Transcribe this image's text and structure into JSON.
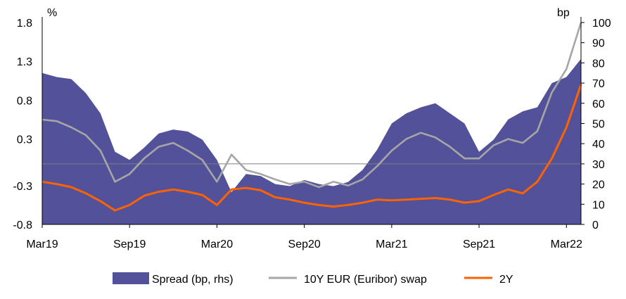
{
  "chart_data": {
    "type": "line",
    "title": "",
    "xlabel": "",
    "ylabel_left": "%",
    "ylabel_right": "bp",
    "x_ticks": [
      "Mar19",
      "Sep19",
      "Mar20",
      "Sep20",
      "Mar21",
      "Sep21",
      "Mar22"
    ],
    "x_range": [
      "Mar19",
      "Apr22"
    ],
    "ylim_left": [
      -0.8,
      1.8
    ],
    "ylim_right": [
      0,
      100
    ],
    "y_ticks_left": [
      "1.8",
      "1.3",
      "0.8",
      "0.3",
      "-0.3",
      "-0.8"
    ],
    "y_ticks_right": [
      "100",
      "90",
      "80",
      "70",
      "60",
      "50",
      "40",
      "30",
      "20",
      "10",
      "0"
    ],
    "grid": false,
    "reference_line_right": 30,
    "legend_position": "bottom",
    "x": [
      "Mar19",
      "Apr19",
      "May19",
      "Jun19",
      "Jul19",
      "Aug19",
      "Sep19",
      "Oct19",
      "Nov19",
      "Dec19",
      "Jan20",
      "Feb20",
      "Mar20",
      "Apr20",
      "May20",
      "Jun20",
      "Jul20",
      "Aug20",
      "Sep20",
      "Oct20",
      "Nov20",
      "Dec20",
      "Jan21",
      "Feb21",
      "Mar21",
      "Apr21",
      "May21",
      "Jun21",
      "Jul21",
      "Aug21",
      "Sep21",
      "Oct21",
      "Nov21",
      "Dec21",
      "Jan22",
      "Feb22",
      "Mar22",
      "Apr22"
    ],
    "series": [
      {
        "name": "Spread (bp, rhs)",
        "type": "area",
        "axis": "right",
        "color": "#525199",
        "values": [
          75,
          73,
          72,
          65,
          55,
          36,
          32,
          38,
          45,
          47,
          46,
          42,
          32,
          16,
          25,
          24,
          20,
          19,
          22,
          20,
          19,
          21,
          27,
          37,
          50,
          55,
          58,
          60,
          55,
          50,
          36,
          42,
          52,
          56,
          58,
          70,
          73,
          82
        ]
      },
      {
        "name": "10Y EUR (Euribor) swap",
        "type": "line",
        "axis": "left",
        "color": "#a6a6a6",
        "values": [
          0.55,
          0.53,
          0.45,
          0.35,
          0.15,
          -0.25,
          -0.15,
          0.05,
          0.2,
          0.25,
          0.15,
          0.03,
          -0.25,
          0.1,
          -0.1,
          -0.15,
          -0.22,
          -0.28,
          -0.25,
          -0.32,
          -0.25,
          -0.3,
          -0.22,
          -0.05,
          0.15,
          0.3,
          0.38,
          0.32,
          0.2,
          0.05,
          0.05,
          0.22,
          0.3,
          0.25,
          0.4,
          0.9,
          1.2,
          1.8
        ]
      },
      {
        "name": "2Y",
        "type": "line",
        "axis": "left",
        "color": "#ff6200",
        "values": [
          -0.25,
          -0.28,
          -0.32,
          -0.4,
          -0.5,
          -0.62,
          -0.55,
          -0.43,
          -0.38,
          -0.35,
          -0.38,
          -0.42,
          -0.55,
          -0.35,
          -0.33,
          -0.36,
          -0.45,
          -0.48,
          -0.52,
          -0.55,
          -0.57,
          -0.55,
          -0.52,
          -0.48,
          -0.49,
          -0.48,
          -0.47,
          -0.46,
          -0.48,
          -0.52,
          -0.5,
          -0.42,
          -0.35,
          -0.4,
          -0.25,
          0.05,
          0.45,
          1.0
        ]
      }
    ]
  }
}
